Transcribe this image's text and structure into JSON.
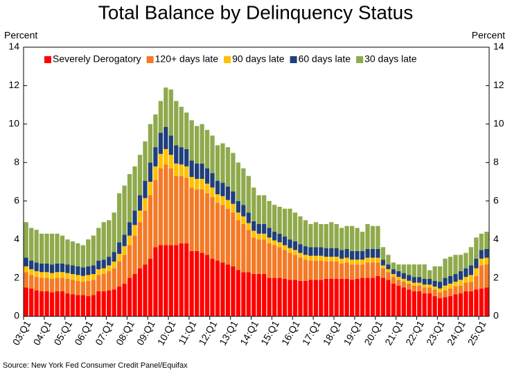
{
  "chart_data": {
    "type": "stacked_bar",
    "title": "Total Balance by Delinquency Status",
    "y_label": "Percent",
    "source": "Source: New York Fed Consumer Credit Panel/Equifax",
    "categories": [
      "03:Q1",
      null,
      null,
      null,
      "04:Q1",
      null,
      null,
      null,
      "05:Q1",
      null,
      null,
      null,
      "06:Q1",
      null,
      null,
      null,
      "07:Q1",
      null,
      null,
      null,
      "08:Q1",
      null,
      null,
      null,
      "09:Q1",
      null,
      null,
      null,
      "10:Q1",
      null,
      null,
      null,
      "11:Q1",
      null,
      null,
      null,
      "12:Q1",
      null,
      null,
      null,
      "13:Q1",
      null,
      null,
      null,
      "14:Q1",
      null,
      null,
      null,
      "15:Q1",
      null,
      null,
      null,
      "16:Q1",
      null,
      null,
      null,
      "17:Q1",
      null,
      null,
      null,
      "18:Q1",
      null,
      null,
      null,
      "19:Q1",
      null,
      null,
      null,
      "20:Q1",
      null,
      null,
      null,
      "21:Q1",
      null,
      null,
      null,
      "22:Q1",
      null,
      null,
      null,
      "23:Q1",
      null,
      null,
      null,
      "24:Q1",
      null,
      null,
      null,
      "25:Q1",
      null
    ],
    "series": [
      {
        "name": "Severely Derogatory",
        "color": "#ff0000",
        "values": [
          1.5,
          1.45,
          1.35,
          1.3,
          1.3,
          1.25,
          1.3,
          1.3,
          1.2,
          1.15,
          1.1,
          1.1,
          1.05,
          1.1,
          1.3,
          1.3,
          1.35,
          1.4,
          1.55,
          1.7,
          2.0,
          2.2,
          2.5,
          2.7,
          3.0,
          3.6,
          3.7,
          3.7,
          3.7,
          3.7,
          3.8,
          3.8,
          3.4,
          3.4,
          3.3,
          3.2,
          3.0,
          2.9,
          2.8,
          2.7,
          2.6,
          2.4,
          2.3,
          2.3,
          2.2,
          2.2,
          2.2,
          2.0,
          2.0,
          2.0,
          1.95,
          1.9,
          1.9,
          1.85,
          1.85,
          1.9,
          1.9,
          1.9,
          1.95,
          1.95,
          1.95,
          1.95,
          1.95,
          1.9,
          1.95,
          2.0,
          2.0,
          2.0,
          2.1,
          2.0,
          1.9,
          1.7,
          1.6,
          1.5,
          1.4,
          1.3,
          1.3,
          1.2,
          1.2,
          1.05,
          0.95,
          1.0,
          1.05,
          1.15,
          1.2,
          1.3,
          1.3,
          1.4,
          1.45,
          1.5
        ]
      },
      {
        "name": "120+ days late",
        "color": "#f47a26",
        "values": [
          0.8,
          0.7,
          0.7,
          0.7,
          0.7,
          0.7,
          0.7,
          0.7,
          0.75,
          0.75,
          0.75,
          0.7,
          0.8,
          0.8,
          0.85,
          0.9,
          1.0,
          1.1,
          1.3,
          1.5,
          1.7,
          2.0,
          2.4,
          2.8,
          3.3,
          3.5,
          4.0,
          4.2,
          4.0,
          3.6,
          3.5,
          3.4,
          3.3,
          3.2,
          3.3,
          3.2,
          3.2,
          3.0,
          3.0,
          2.9,
          2.8,
          2.6,
          2.5,
          2.2,
          1.9,
          1.8,
          1.8,
          1.8,
          1.7,
          1.6,
          1.5,
          1.4,
          1.3,
          1.2,
          1.1,
          1.0,
          1.0,
          1.0,
          0.9,
          0.9,
          0.9,
          0.8,
          0.85,
          0.8,
          0.75,
          0.7,
          0.8,
          0.8,
          0.7,
          0.5,
          0.4,
          0.35,
          0.3,
          0.3,
          0.3,
          0.3,
          0.3,
          0.3,
          0.3,
          0.35,
          0.3,
          0.35,
          0.4,
          0.4,
          0.4,
          0.45,
          0.5,
          0.7,
          1.2,
          1.2
        ]
      },
      {
        "name": "90 days late",
        "color": "#ffc000",
        "values": [
          0.3,
          0.3,
          0.3,
          0.3,
          0.3,
          0.3,
          0.3,
          0.3,
          0.3,
          0.3,
          0.3,
          0.3,
          0.3,
          0.3,
          0.3,
          0.3,
          0.3,
          0.35,
          0.4,
          0.45,
          0.5,
          0.55,
          0.6,
          0.65,
          0.7,
          0.7,
          0.75,
          0.8,
          0.7,
          0.65,
          0.6,
          0.6,
          0.55,
          0.55,
          0.55,
          0.5,
          0.5,
          0.45,
          0.45,
          0.45,
          0.45,
          0.4,
          0.4,
          0.35,
          0.35,
          0.3,
          0.3,
          0.3,
          0.25,
          0.25,
          0.25,
          0.25,
          0.25,
          0.25,
          0.25,
          0.25,
          0.25,
          0.25,
          0.25,
          0.25,
          0.25,
          0.25,
          0.25,
          0.25,
          0.25,
          0.25,
          0.25,
          0.25,
          0.25,
          0.15,
          0.15,
          0.15,
          0.15,
          0.15,
          0.15,
          0.15,
          0.15,
          0.15,
          0.15,
          0.15,
          0.2,
          0.25,
          0.25,
          0.25,
          0.3,
          0.3,
          0.35,
          0.4,
          0.35,
          0.35
        ]
      },
      {
        "name": "60 days late",
        "color": "#1f3f7a",
        "values": [
          0.45,
          0.45,
          0.45,
          0.45,
          0.45,
          0.45,
          0.45,
          0.45,
          0.45,
          0.45,
          0.45,
          0.45,
          0.45,
          0.45,
          0.45,
          0.45,
          0.45,
          0.5,
          0.6,
          0.6,
          0.7,
          0.75,
          0.8,
          0.9,
          1.0,
          1.0,
          1.1,
          1.15,
          1.0,
          0.95,
          0.9,
          0.9,
          0.85,
          0.8,
          0.8,
          0.8,
          0.75,
          0.7,
          0.7,
          0.7,
          0.65,
          0.6,
          0.6,
          0.55,
          0.5,
          0.5,
          0.5,
          0.5,
          0.45,
          0.45,
          0.45,
          0.45,
          0.45,
          0.45,
          0.45,
          0.45,
          0.45,
          0.45,
          0.45,
          0.45,
          0.45,
          0.45,
          0.45,
          0.45,
          0.45,
          0.45,
          0.45,
          0.45,
          0.45,
          0.3,
          0.25,
          0.25,
          0.3,
          0.3,
          0.3,
          0.3,
          0.3,
          0.3,
          0.3,
          0.3,
          0.35,
          0.4,
          0.4,
          0.4,
          0.45,
          0.45,
          0.5,
          0.5,
          0.45,
          0.45
        ]
      },
      {
        "name": "30 days late",
        "color": "#8faa4c",
        "values": [
          1.85,
          1.7,
          1.7,
          1.55,
          1.55,
          1.6,
          1.55,
          1.45,
          1.3,
          1.25,
          1.2,
          1.15,
          1.4,
          1.55,
          1.7,
          1.95,
          1.9,
          2.05,
          2.55,
          2.55,
          2.5,
          2.3,
          2.1,
          2.05,
          2.0,
          1.7,
          1.65,
          2.05,
          2.4,
          2.3,
          2.1,
          1.9,
          2.1,
          1.95,
          2.05,
          2.0,
          1.95,
          1.85,
          2.05,
          2.05,
          2.0,
          2.0,
          1.9,
          1.9,
          1.75,
          1.5,
          1.5,
          1.4,
          1.4,
          1.4,
          1.45,
          1.6,
          1.5,
          1.45,
          1.35,
          1.2,
          1.3,
          1.2,
          1.25,
          1.35,
          1.25,
          1.15,
          1.2,
          1.3,
          1.2,
          1.0,
          1.3,
          1.2,
          1.2,
          0.65,
          0.5,
          0.35,
          0.35,
          0.45,
          0.55,
          0.65,
          0.65,
          0.75,
          0.45,
          0.75,
          0.8,
          1.0,
          1.0,
          1.0,
          0.85,
          0.8,
          0.95,
          1.1,
          0.85,
          0.9
        ]
      }
    ],
    "ylim": [
      0,
      14
    ],
    "yticks": [
      0,
      2,
      4,
      6,
      8,
      10,
      12,
      14
    ],
    "legend": "top"
  }
}
